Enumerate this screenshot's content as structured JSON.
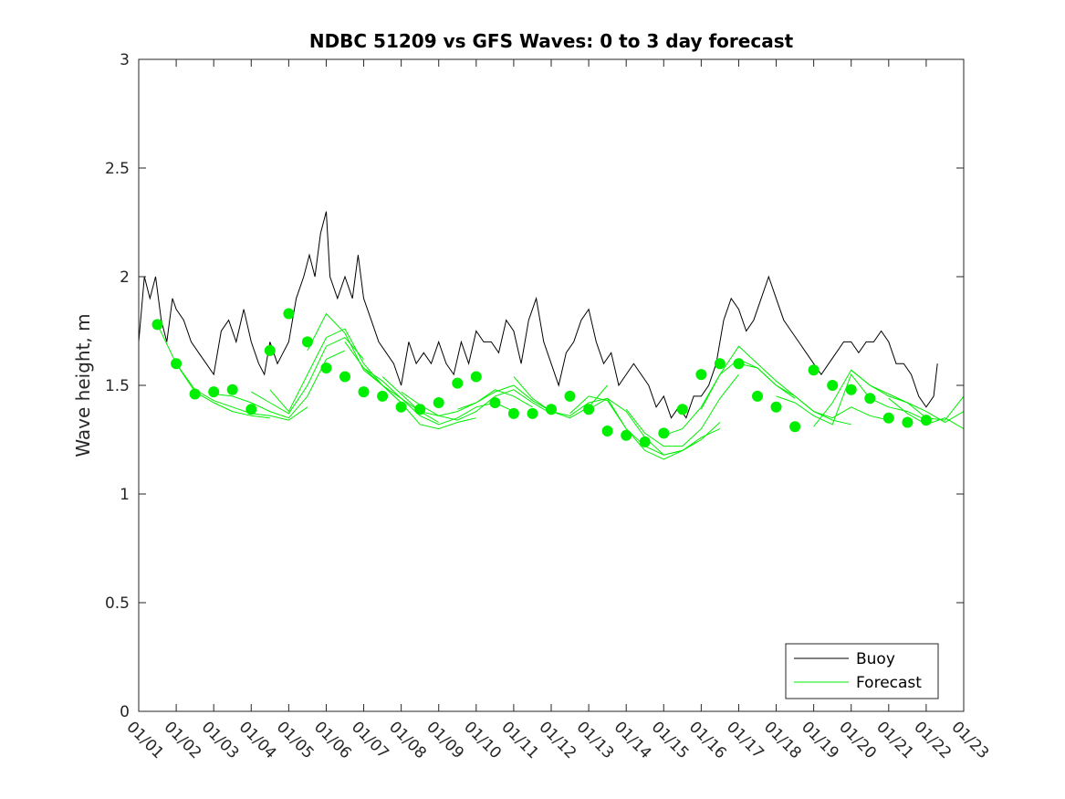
{
  "chart_data": {
    "type": "line",
    "title": "NDBC 51209 vs GFS Waves: 0 to 3 day forecast",
    "xlabel": "",
    "ylabel": "Wave height, m",
    "xlim": [
      0,
      22
    ],
    "ylim": [
      0,
      3
    ],
    "y_ticks": [
      0,
      0.5,
      1,
      1.5,
      2,
      2.5,
      3
    ],
    "y_tick_labels": [
      "0",
      "0.5",
      "1",
      "1.5",
      "2",
      "2.5",
      "3"
    ],
    "x_ticks": [
      0,
      1,
      2,
      3,
      4,
      5,
      6,
      7,
      8,
      9,
      10,
      11,
      12,
      13,
      14,
      15,
      16,
      17,
      18,
      19,
      20,
      21,
      22
    ],
    "x_tick_labels": [
      "01/01",
      "01/02",
      "01/03",
      "01/04",
      "01/05",
      "01/06",
      "01/07",
      "01/08",
      "01/09",
      "01/10",
      "01/11",
      "01/12",
      "01/13",
      "01/14",
      "01/15",
      "01/16",
      "01/17",
      "01/18",
      "01/19",
      "01/20",
      "01/21",
      "01/22",
      "01/23"
    ],
    "legend": {
      "position": "bottom-right",
      "entries": [
        "Buoy",
        "Forecast"
      ]
    },
    "colors": {
      "buoy": "#000000",
      "forecast": "#00ee00",
      "axis": "#262626"
    },
    "buoy_series": {
      "name": "Buoy",
      "x": [
        0,
        0.15,
        0.3,
        0.45,
        0.6,
        0.75,
        0.9,
        1.0,
        1.2,
        1.4,
        1.6,
        1.8,
        2.0,
        2.2,
        2.4,
        2.6,
        2.8,
        3.0,
        3.2,
        3.35,
        3.5,
        3.7,
        3.85,
        4.0,
        4.2,
        4.4,
        4.55,
        4.7,
        4.85,
        5.0,
        5.1,
        5.3,
        5.5,
        5.7,
        5.85,
        6.0,
        6.2,
        6.4,
        6.6,
        6.8,
        7.0,
        7.2,
        7.4,
        7.6,
        7.8,
        8.0,
        8.2,
        8.4,
        8.6,
        8.8,
        9.0,
        9.2,
        9.4,
        9.6,
        9.8,
        10.0,
        10.2,
        10.4,
        10.6,
        10.8,
        11.0,
        11.2,
        11.4,
        11.6,
        11.8,
        12.0,
        12.2,
        12.4,
        12.6,
        12.8,
        13.0,
        13.2,
        13.4,
        13.6,
        13.8,
        14.0,
        14.2,
        14.4,
        14.6,
        14.8,
        15.0,
        15.2,
        15.4,
        15.6,
        15.8,
        16.0,
        16.2,
        16.4,
        16.6,
        16.8,
        17.0,
        17.2,
        17.4,
        17.6,
        17.8,
        18.0,
        18.2,
        18.4,
        18.6,
        18.8,
        19.0,
        19.2,
        19.4,
        19.6,
        19.8,
        20.0,
        20.2,
        20.4,
        20.6,
        20.8,
        21.0,
        21.2,
        21.3
      ],
      "values": [
        1.7,
        2.0,
        1.9,
        2.0,
        1.8,
        1.7,
        1.9,
        1.85,
        1.8,
        1.7,
        1.65,
        1.6,
        1.55,
        1.75,
        1.8,
        1.7,
        1.85,
        1.7,
        1.6,
        1.55,
        1.7,
        1.6,
        1.65,
        1.7,
        1.9,
        2.0,
        2.1,
        2.0,
        2.2,
        2.3,
        2.0,
        1.9,
        2.0,
        1.9,
        2.1,
        1.9,
        1.8,
        1.7,
        1.65,
        1.6,
        1.5,
        1.7,
        1.6,
        1.65,
        1.6,
        1.7,
        1.6,
        1.55,
        1.7,
        1.6,
        1.75,
        1.7,
        1.7,
        1.65,
        1.8,
        1.75,
        1.6,
        1.8,
        1.9,
        1.7,
        1.6,
        1.5,
        1.65,
        1.7,
        1.8,
        1.85,
        1.7,
        1.6,
        1.65,
        1.5,
        1.55,
        1.6,
        1.55,
        1.5,
        1.4,
        1.45,
        1.35,
        1.4,
        1.35,
        1.45,
        1.45,
        1.5,
        1.6,
        1.8,
        1.9,
        1.85,
        1.75,
        1.8,
        1.9,
        2.0,
        1.9,
        1.8,
        1.75,
        1.7,
        1.65,
        1.6,
        1.55,
        1.6,
        1.65,
        1.7,
        1.7,
        1.65,
        1.7,
        1.7,
        1.75,
        1.7,
        1.6,
        1.6,
        1.55,
        1.45,
        1.4,
        1.45,
        1.6
      ]
    },
    "forecast_runs": [
      {
        "x": [
          0.5,
          1,
          1.5,
          2,
          2.5,
          3,
          3.5
        ],
        "values": [
          1.78,
          1.6,
          1.47,
          1.42,
          1.38,
          1.36,
          1.35
        ]
      },
      {
        "x": [
          1,
          1.5,
          2,
          2.5,
          3,
          3.5,
          4,
          4.5
        ],
        "values": [
          1.6,
          1.48,
          1.43,
          1.4,
          1.37,
          1.36,
          1.34,
          1.4
        ]
      },
      {
        "x": [
          2,
          2.5,
          3,
          3.5,
          4,
          4.5,
          5,
          5.5
        ],
        "values": [
          1.46,
          1.45,
          1.42,
          1.38,
          1.35,
          1.45,
          1.62,
          1.66
        ]
      },
      {
        "x": [
          3,
          3.5,
          4,
          4.5,
          5,
          5.5,
          6
        ],
        "values": [
          1.47,
          1.42,
          1.37,
          1.5,
          1.68,
          1.72,
          1.62
        ]
      },
      {
        "x": [
          3.5,
          4,
          4.5,
          5,
          5.5,
          6,
          6.5,
          7
        ],
        "values": [
          1.48,
          1.38,
          1.55,
          1.72,
          1.76,
          1.6,
          1.5,
          1.42
        ]
      },
      {
        "x": [
          4.5,
          5,
          5.5,
          6,
          6.5,
          7,
          7.5,
          8
        ],
        "values": [
          1.66,
          1.83,
          1.74,
          1.57,
          1.5,
          1.44,
          1.38,
          1.33
        ]
      },
      {
        "x": [
          5.5,
          6,
          6.5,
          7,
          7.5,
          8,
          8.5,
          9
        ],
        "values": [
          1.7,
          1.58,
          1.5,
          1.42,
          1.32,
          1.3,
          1.33,
          1.35
        ]
      },
      {
        "x": [
          6,
          6.5,
          7,
          7.5,
          8,
          8.5,
          9,
          9.5,
          10
        ],
        "values": [
          1.58,
          1.52,
          1.44,
          1.36,
          1.32,
          1.35,
          1.4,
          1.42,
          1.38
        ]
      },
      {
        "x": [
          6.5,
          7,
          7.5,
          8,
          8.5,
          9,
          9.5,
          10,
          10.5
        ],
        "values": [
          1.54,
          1.46,
          1.38,
          1.36,
          1.38,
          1.42,
          1.48,
          1.45,
          1.4
        ]
      },
      {
        "x": [
          7,
          7.5,
          8,
          8.5,
          9,
          9.5,
          10,
          10.5,
          11
        ],
        "values": [
          1.47,
          1.41,
          1.36,
          1.34,
          1.38,
          1.45,
          1.48,
          1.42,
          1.37
        ]
      },
      {
        "x": [
          8.5,
          9,
          9.5,
          10,
          10.5,
          11,
          11.5,
          12,
          12.5
        ],
        "values": [
          1.39,
          1.42,
          1.47,
          1.5,
          1.43,
          1.38,
          1.35,
          1.4,
          1.5
        ]
      },
      {
        "x": [
          10,
          10.5,
          11,
          11.5,
          12,
          12.5,
          13,
          13.5,
          14,
          14.5
        ],
        "values": [
          1.54,
          1.44,
          1.38,
          1.36,
          1.42,
          1.44,
          1.3,
          1.22,
          1.18,
          1.2
        ]
      },
      {
        "x": [
          11.5,
          12,
          12.5,
          13,
          13.5,
          14,
          14.5,
          15,
          15.5
        ],
        "values": [
          1.37,
          1.45,
          1.43,
          1.3,
          1.2,
          1.16,
          1.2,
          1.25,
          1.33
        ]
      },
      {
        "x": [
          12,
          12.5,
          13,
          13.5,
          14,
          14.5,
          15,
          15.5
        ],
        "values": [
          1.39,
          1.44,
          1.38,
          1.26,
          1.18,
          1.2,
          1.26,
          1.3
        ]
      },
      {
        "x": [
          13,
          13.5,
          14,
          14.5,
          15,
          15.5,
          16
        ],
        "values": [
          1.39,
          1.28,
          1.22,
          1.22,
          1.3,
          1.44,
          1.55
        ]
      },
      {
        "x": [
          14,
          14.5,
          15,
          15.5,
          16,
          16.5,
          17,
          17.5
        ],
        "values": [
          1.27,
          1.3,
          1.4,
          1.55,
          1.62,
          1.58,
          1.5,
          1.44
        ]
      },
      {
        "x": [
          15,
          15.5,
          16,
          16.5,
          17,
          17.5,
          18,
          18.5,
          19
        ],
        "values": [
          1.39,
          1.55,
          1.68,
          1.6,
          1.52,
          1.45,
          1.38,
          1.34,
          1.32
        ]
      },
      {
        "x": [
          16,
          16.5,
          17,
          17.5,
          18,
          18.5,
          19,
          19.5,
          20
        ],
        "values": [
          1.6,
          1.58,
          1.5,
          1.45,
          1.38,
          1.35,
          1.4,
          1.36,
          1.34
        ]
      },
      {
        "x": [
          17,
          17.5,
          18,
          18.5,
          19,
          19.5,
          20,
          20.5,
          21
        ],
        "values": [
          1.45,
          1.42,
          1.36,
          1.32,
          1.55,
          1.44,
          1.4,
          1.38,
          1.34
        ]
      },
      {
        "x": [
          18,
          18.5,
          19,
          19.5,
          20,
          20.5,
          21,
          21.5,
          22
        ],
        "values": [
          1.31,
          1.42,
          1.57,
          1.5,
          1.46,
          1.42,
          1.38,
          1.33,
          1.38
        ]
      },
      {
        "x": [
          19,
          19.5,
          20,
          20.5,
          21,
          21.5,
          22
        ],
        "values": [
          1.57,
          1.5,
          1.45,
          1.42,
          1.35,
          1.34,
          1.45
        ]
      },
      {
        "x": [
          20,
          20.5,
          21,
          21.5,
          22
        ],
        "values": [
          1.44,
          1.37,
          1.32,
          1.35,
          1.3
        ]
      }
    ],
    "forecast_points": {
      "name": "Forecast",
      "x": [
        0.5,
        1,
        1.5,
        2,
        2.5,
        3,
        3.5,
        4,
        4.5,
        5,
        5.5,
        6,
        6.5,
        7,
        7.5,
        8,
        8.5,
        9,
        9.5,
        10,
        10.5,
        11,
        11.5,
        12,
        12.5,
        13,
        13.5,
        14,
        14.5,
        15,
        15.5,
        16,
        16.5,
        17,
        17.5,
        18,
        18.5,
        19,
        19.5,
        20,
        20.5,
        21
      ],
      "values": [
        1.78,
        1.6,
        1.46,
        1.47,
        1.48,
        1.39,
        1.66,
        1.83,
        1.7,
        1.58,
        1.54,
        1.47,
        1.45,
        1.4,
        1.39,
        1.42,
        1.51,
        1.54,
        1.42,
        1.37,
        1.37,
        1.39,
        1.45,
        1.39,
        1.29,
        1.27,
        1.24,
        1.28,
        1.39,
        1.55,
        1.6,
        1.6,
        1.45,
        1.4,
        1.31,
        1.57,
        1.5,
        1.48,
        1.44,
        1.35,
        1.33,
        1.34
      ]
    }
  }
}
